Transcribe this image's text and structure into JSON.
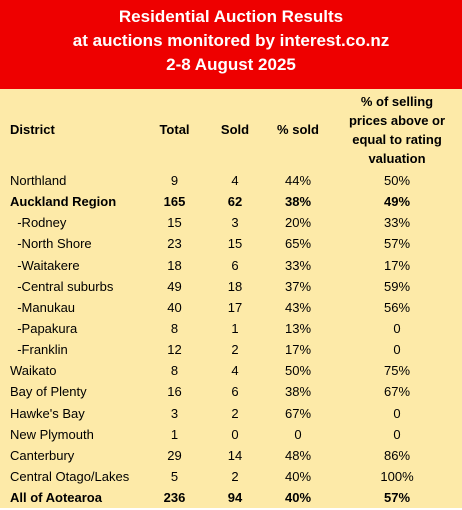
{
  "header": {
    "line1": "Residential Auction Results",
    "line2": "at auctions monitored by interest.co.nz",
    "line3": "2-8 August 2025"
  },
  "columns": {
    "district": "District",
    "total": "Total",
    "sold": "Sold",
    "pct_sold": "% sold",
    "pct_above_line1": "% of selling",
    "pct_above_line2": "prices above or",
    "pct_above_line3": "equal to rating",
    "pct_above_line4": "valuation"
  },
  "rows": [
    {
      "district": "Northland",
      "total": "9",
      "sold": "4",
      "pct_sold": "44%",
      "pct_above": "50%",
      "bold": false
    },
    {
      "district": "Auckland Region",
      "total": "165",
      "sold": "62",
      "pct_sold": "38%",
      "pct_above": "49%",
      "bold": true
    },
    {
      "district": "  -Rodney",
      "total": "15",
      "sold": "3",
      "pct_sold": "20%",
      "pct_above": "33%",
      "bold": false
    },
    {
      "district": "  -North Shore",
      "total": "23",
      "sold": "15",
      "pct_sold": "65%",
      "pct_above": "57%",
      "bold": false
    },
    {
      "district": "  -Waitakere",
      "total": "18",
      "sold": "6",
      "pct_sold": "33%",
      "pct_above": "17%",
      "bold": false
    },
    {
      "district": "  -Central suburbs",
      "total": "49",
      "sold": "18",
      "pct_sold": "37%",
      "pct_above": "59%",
      "bold": false
    },
    {
      "district": "  -Manukau",
      "total": "40",
      "sold": "17",
      "pct_sold": "43%",
      "pct_above": "56%",
      "bold": false
    },
    {
      "district": "  -Papakura",
      "total": "8",
      "sold": "1",
      "pct_sold": "13%",
      "pct_above": "0",
      "bold": false
    },
    {
      "district": "  -Franklin",
      "total": "12",
      "sold": "2",
      "pct_sold": "17%",
      "pct_above": "0",
      "bold": false
    },
    {
      "district": "Waikato",
      "total": "8",
      "sold": "4",
      "pct_sold": "50%",
      "pct_above": "75%",
      "bold": false
    },
    {
      "district": "Bay of Plenty",
      "total": "16",
      "sold": "6",
      "pct_sold": "38%",
      "pct_above": "67%",
      "bold": false
    },
    {
      "district": "Hawke's Bay",
      "total": "3",
      "sold": "2",
      "pct_sold": "67%",
      "pct_above": "0",
      "bold": false
    },
    {
      "district": "New Plymouth",
      "total": "1",
      "sold": "0",
      "pct_sold": "0",
      "pct_above": "0",
      "bold": false
    },
    {
      "district": "Canterbury",
      "total": "29",
      "sold": "14",
      "pct_sold": "48%",
      "pct_above": "86%",
      "bold": false
    },
    {
      "district": "Central Otago/Lakes",
      "total": "5",
      "sold": "2",
      "pct_sold": "40%",
      "pct_above": "100%",
      "bold": false
    },
    {
      "district": "All of Aotearoa",
      "total": "236",
      "sold": "94",
      "pct_sold": "40%",
      "pct_above": "57%",
      "bold": true
    }
  ],
  "colors": {
    "header_bg": "#ee0000",
    "header_text": "#ffffff",
    "table_bg": "#fdeaa8"
  }
}
